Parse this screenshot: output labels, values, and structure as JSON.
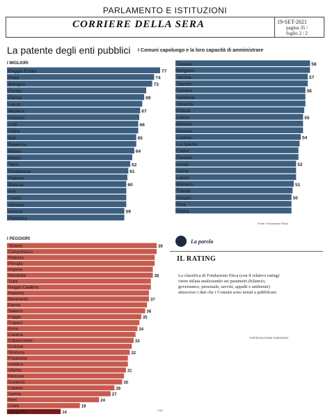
{
  "header": {
    "section": "PARLAMENTO E ISTITUZIONI",
    "newspaper": "CORRIERE DELLA SERA",
    "date": "19-SET-2021",
    "page": "pagina 35 /",
    "sheet": "foglio 2 / 2"
  },
  "article": {
    "title": "La patente degli enti pubblici",
    "subtitle": "I Comuni capoluogo e la loro capacità di amministrare",
    "source": "Fonte: Fondazione Etica",
    "column_label": "La parola",
    "rating_title": "IL RATING",
    "rating_text": "La classifica di Fondazione Etica (con il relativo rating) viene stilata analizzando sei parametri (bilancio, governance, personale, servizi, appalti e ambiente) attraverso i dati che i Comuni sono tenuti a pubblicare.",
    "reproduction": "©RIPRODUZIONE RISERVATA",
    "footer_mark": "CdS"
  },
  "colors": {
    "best": "#3d5f7f",
    "worst": "#c75a4e",
    "last": "#7a1a18"
  },
  "chart_data": [
    {
      "type": "bar",
      "orientation": "horizontal",
      "title": "I MIGLIORI",
      "categories": [
        "Reggio Emilia",
        "Prato",
        "Bologna",
        "Cuneo",
        "Parma",
        "Lecco",
        "Modena",
        "Vicenza",
        "Lodi",
        "Udine",
        "Bari",
        "Ravenna",
        "Milano",
        "Rimini",
        "Terni",
        "Pordenone",
        "Padova",
        "Brescia",
        "Asti",
        "Trento",
        "Genova",
        "Arezzo",
        "Piacenza"
      ],
      "values": [
        77,
        74,
        73,
        null,
        69,
        null,
        67,
        null,
        66,
        null,
        65,
        null,
        64,
        null,
        62,
        61,
        null,
        60,
        null,
        null,
        null,
        59,
        null
      ],
      "bar_values": [
        77,
        74,
        73,
        70,
        69,
        68,
        67,
        66.5,
        66,
        66,
        65,
        65,
        64,
        63,
        62,
        61,
        60.5,
        60,
        60,
        60,
        60,
        59,
        59
      ]
    },
    {
      "type": "bar",
      "orientation": "horizontal",
      "title": "",
      "categories": [
        "Treviso",
        "Bergamo",
        "Verona",
        "Sassari",
        "Sondrio",
        "Verbania",
        "Venezia",
        "Pistoia",
        "Lucca",
        "Belluno",
        "Novara",
        "Livorno",
        "La Spezia",
        "Como",
        "Ferrara",
        "Aosta",
        "Siena",
        "Lecce",
        "Bolzano",
        "Trieste",
        "Pesaro",
        "Pisa",
        "Roma"
      ],
      "values": [
        58,
        null,
        57,
        null,
        56,
        null,
        null,
        null,
        55,
        null,
        null,
        54,
        null,
        null,
        null,
        52,
        null,
        null,
        51,
        null,
        50,
        null,
        null
      ],
      "bar_values": [
        58,
        58,
        57,
        57,
        56,
        56,
        56,
        55.5,
        55,
        55,
        55,
        54,
        53.5,
        53,
        53,
        52,
        52,
        52,
        51,
        50.5,
        50,
        50,
        50
      ]
    },
    {
      "type": "bar",
      "orientation": "horizontal",
      "title": "I PEGGIORI",
      "categories": [
        "Teramo",
        "Campobasso",
        "Potenza",
        "Perugia",
        "Imperia",
        "Macerata",
        "Trani",
        "Reggio Calabria",
        "Palermo",
        "Benevento",
        "Fermo",
        "Salerno",
        "Foggia",
        "Trapani",
        "Enna",
        "Caserta",
        "Caltanissetta",
        "Crotone",
        "Siracusa",
        "Frosinone",
        "Avellino",
        "Viterbo",
        "Messina",
        "Cosenza",
        "Catania",
        "Isernia",
        "Rieti",
        "Chieti",
        "Agrigento"
      ],
      "values": [
        39,
        null,
        null,
        null,
        null,
        38,
        null,
        null,
        null,
        37,
        null,
        36,
        35,
        null,
        34,
        null,
        33,
        null,
        32,
        null,
        null,
        31,
        null,
        30,
        28,
        27,
        24,
        19,
        14
      ],
      "bar_values": [
        39,
        39,
        38.5,
        38.5,
        38,
        38,
        37.5,
        37.5,
        37,
        37,
        36.5,
        36,
        35,
        34.5,
        34,
        33.5,
        33,
        32.5,
        32,
        31.5,
        31.5,
        31,
        30.5,
        30,
        28,
        27,
        24,
        19,
        14
      ]
    }
  ]
}
